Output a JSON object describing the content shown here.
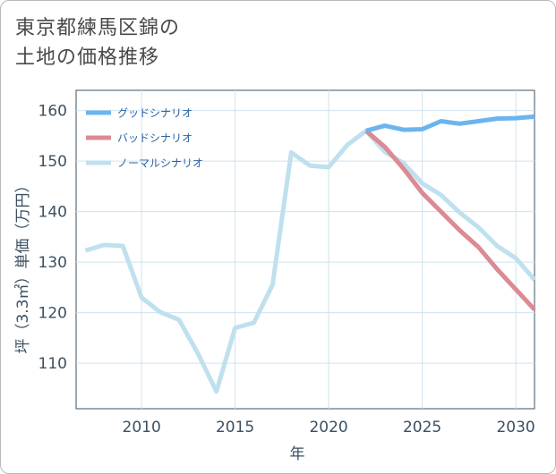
{
  "title_line1": "東京都練馬区錦の",
  "title_line2": "土地の価格推移",
  "chart_data": {
    "type": "line",
    "title": "東京都練馬区錦の土地の価格推移",
    "xlabel": "年",
    "ylabel": "坪（3.3㎡）単価（万円）",
    "xlim": [
      2006.5,
      2031
    ],
    "ylim": [
      101,
      164
    ],
    "x_ticks": [
      2010,
      2015,
      2020,
      2025,
      2030
    ],
    "y_ticks": [
      110,
      120,
      130,
      140,
      150,
      160
    ],
    "x_tick_labels": [
      "2010",
      "2015",
      "2020",
      "2025",
      "2030"
    ],
    "y_tick_labels": [
      "110",
      "120",
      "130",
      "140",
      "150",
      "160"
    ],
    "grid": true,
    "legend_position": "top-left",
    "series": [
      {
        "name": "グッドシナリオ",
        "color": "#6cb4ee",
        "x": [
          2022,
          2023,
          2024,
          2025,
          2026,
          2027,
          2028,
          2029,
          2030,
          2031
        ],
        "values": [
          156.0,
          157.0,
          156.2,
          156.3,
          157.9,
          157.4,
          157.9,
          158.4,
          158.5,
          158.8
        ]
      },
      {
        "name": "バッドシナリオ",
        "color": "#dc8a93",
        "x": [
          2022,
          2023,
          2024,
          2025,
          2026,
          2027,
          2028,
          2029,
          2030,
          2031
        ],
        "values": [
          156.0,
          152.8,
          148.5,
          143.7,
          140.0,
          136.3,
          133.0,
          128.6,
          124.6,
          120.6
        ]
      },
      {
        "name": "ノーマルシナリオ",
        "color": "#bfe0ee",
        "x": [
          2007,
          2008,
          2009,
          2010,
          2011,
          2012,
          2013,
          2014,
          2015,
          2016,
          2017,
          2018,
          2019,
          2020,
          2021,
          2022,
          2023,
          2024,
          2025,
          2026,
          2027,
          2028,
          2029,
          2030,
          2031
        ],
        "values": [
          132.3,
          133.4,
          133.2,
          123.0,
          120.1,
          118.6,
          112.0,
          104.4,
          117.0,
          118.0,
          125.5,
          151.7,
          149.1,
          148.8,
          153.2,
          156.0,
          151.8,
          149.6,
          145.6,
          143.3,
          139.8,
          136.9,
          133.2,
          130.8,
          126.5
        ]
      }
    ]
  }
}
